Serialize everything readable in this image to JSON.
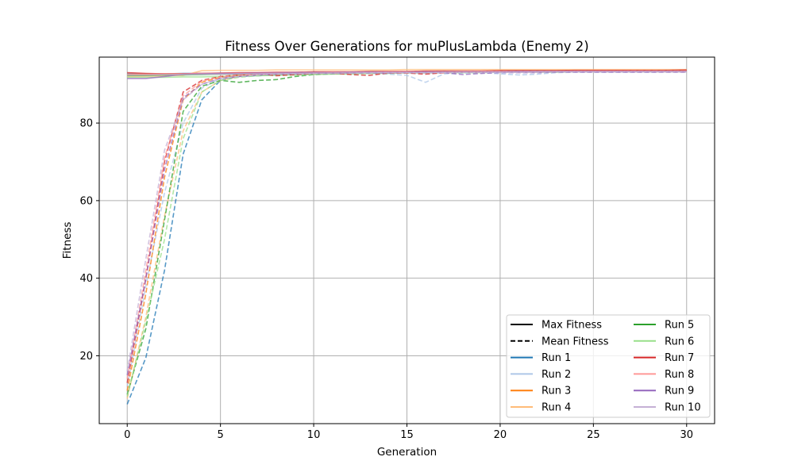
{
  "chart_data": {
    "type": "line",
    "title": "Fitness Over Generations for muPlusLambda (Enemy 2)",
    "xlabel": "Generation",
    "ylabel": "Fitness",
    "xlim": [
      -1.5,
      31.5
    ],
    "ylim": [
      2.5,
      97.0
    ],
    "xticks": [
      0,
      5,
      10,
      15,
      20,
      25,
      30
    ],
    "yticks": [
      20,
      40,
      60,
      80
    ],
    "grid": true,
    "legend_position": "lower-right",
    "legend_style_entries": [
      {
        "label": "Max Fitness",
        "style": "solid"
      },
      {
        "label": "Mean Fitness",
        "style": "dashed"
      }
    ],
    "x": [
      0,
      1,
      2,
      3,
      4,
      5,
      6,
      7,
      8,
      9,
      10,
      11,
      12,
      13,
      14,
      15,
      16,
      17,
      18,
      19,
      20,
      21,
      22,
      23,
      24,
      25,
      26,
      27,
      28,
      29,
      30
    ],
    "series": [
      {
        "name": "Run 1",
        "color": "#1f77b4",
        "max": [
          92.7,
          92.7,
          92.7,
          92.8,
          92.8,
          92.8,
          92.9,
          92.9,
          93.0,
          93.0,
          93.1,
          93.1,
          93.1,
          93.2,
          93.2,
          93.2,
          93.2,
          93.3,
          93.3,
          93.3,
          93.4,
          93.4,
          93.4,
          93.4,
          93.5,
          93.5,
          93.5,
          93.5,
          93.5,
          93.6,
          93.6
        ],
        "mean": [
          7.5,
          19.5,
          42.0,
          72.0,
          86.0,
          91.0,
          92.0,
          92.2,
          92.5,
          92.7,
          92.8,
          92.9,
          92.9,
          93.0,
          93.0,
          93.0,
          93.1,
          93.1,
          93.1,
          93.2,
          93.2,
          93.2,
          93.2,
          93.3,
          93.3,
          93.3,
          93.3,
          93.4,
          93.4,
          93.4,
          93.4
        ]
      },
      {
        "name": "Run 2",
        "color": "#aec7e8",
        "max": [
          92.2,
          92.3,
          92.4,
          92.5,
          92.5,
          92.6,
          92.6,
          92.7,
          92.7,
          92.8,
          92.8,
          92.8,
          92.9,
          92.9,
          92.9,
          93.0,
          93.0,
          93.0,
          93.0,
          93.1,
          93.1,
          93.1,
          93.1,
          93.1,
          93.2,
          93.2,
          93.2,
          93.2,
          93.2,
          93.2,
          93.2
        ],
        "mean": [
          12.0,
          38.0,
          62.0,
          80.0,
          89.0,
          91.5,
          92.0,
          92.3,
          92.5,
          92.6,
          92.7,
          92.8,
          92.8,
          92.9,
          92.6,
          92.3,
          90.5,
          92.7,
          92.9,
          93.0,
          92.7,
          92.4,
          92.6,
          93.0,
          93.1,
          93.1,
          93.1,
          93.1,
          93.1,
          93.2,
          93.2
        ]
      },
      {
        "name": "Run 3",
        "color": "#ff7f0e",
        "max": [
          92.5,
          92.6,
          92.7,
          92.7,
          92.8,
          92.8,
          92.9,
          92.9,
          93.0,
          93.0,
          93.0,
          93.1,
          93.1,
          93.1,
          93.2,
          93.2,
          93.2,
          93.3,
          93.3,
          93.3,
          93.3,
          93.4,
          93.4,
          93.4,
          93.4,
          93.4,
          93.5,
          93.5,
          93.5,
          93.5,
          93.5
        ],
        "mean": [
          11.0,
          36.0,
          66.0,
          86.0,
          90.5,
          91.8,
          92.3,
          92.5,
          92.7,
          92.8,
          92.9,
          93.0,
          93.0,
          93.1,
          93.1,
          93.1,
          93.2,
          93.2,
          93.2,
          93.2,
          93.3,
          93.3,
          93.3,
          93.3,
          93.3,
          93.4,
          93.4,
          93.4,
          93.4,
          93.4,
          93.4
        ]
      },
      {
        "name": "Run 4",
        "color": "#ffbb78",
        "max": [
          92.0,
          92.1,
          92.2,
          92.3,
          93.5,
          93.6,
          93.6,
          93.6,
          93.7,
          93.7,
          93.7,
          93.7,
          93.7,
          93.7,
          93.7,
          93.8,
          93.8,
          93.8,
          93.8,
          93.8,
          93.8,
          93.8,
          93.8,
          93.8,
          93.8,
          93.8,
          93.8,
          93.8,
          93.8,
          93.8,
          93.8
        ],
        "mean": [
          9.0,
          30.0,
          56.0,
          78.0,
          88.0,
          91.0,
          92.0,
          92.4,
          92.6,
          92.8,
          92.9,
          93.0,
          93.1,
          93.1,
          93.2,
          93.2,
          93.3,
          93.3,
          93.3,
          93.4,
          93.4,
          93.4,
          93.4,
          93.5,
          93.5,
          93.5,
          93.5,
          93.5,
          93.5,
          93.5,
          93.5
        ]
      },
      {
        "name": "Run 5",
        "color": "#2ca02c",
        "max": [
          92.3,
          92.3,
          92.4,
          92.4,
          92.5,
          92.6,
          92.6,
          92.7,
          92.8,
          92.8,
          92.9,
          92.9,
          93.0,
          93.0,
          93.0,
          93.1,
          93.1,
          93.1,
          93.2,
          93.2,
          93.2,
          93.2,
          93.3,
          93.3,
          93.3,
          93.3,
          93.3,
          93.3,
          93.4,
          93.4,
          93.4
        ],
        "mean": [
          10.0,
          27.0,
          55.0,
          83.0,
          89.5,
          91.0,
          90.5,
          91.0,
          91.2,
          92.0,
          92.5,
          92.7,
          92.8,
          92.9,
          93.0,
          93.0,
          93.1,
          93.1,
          93.1,
          93.2,
          93.2,
          93.2,
          93.2,
          93.3,
          93.3,
          93.3,
          93.3,
          93.3,
          93.3,
          93.3,
          93.3
        ]
      },
      {
        "name": "Run 6",
        "color": "#98df8a",
        "max": [
          91.8,
          91.8,
          91.8,
          91.9,
          91.9,
          92.0,
          92.1,
          92.2,
          92.3,
          92.4,
          92.5,
          92.6,
          92.7,
          92.8,
          92.8,
          92.9,
          92.9,
          93.0,
          93.0,
          93.0,
          93.1,
          93.1,
          93.1,
          93.1,
          93.2,
          93.2,
          93.2,
          93.2,
          93.2,
          93.2,
          93.2
        ],
        "mean": [
          9.5,
          29.0,
          50.0,
          76.0,
          88.0,
          91.0,
          91.8,
          92.2,
          92.4,
          92.6,
          92.7,
          92.8,
          92.9,
          92.9,
          93.0,
          93.0,
          93.0,
          93.1,
          93.1,
          93.1,
          93.1,
          93.2,
          93.2,
          93.2,
          93.2,
          93.2,
          93.2,
          93.2,
          93.2,
          93.2,
          93.2
        ]
      },
      {
        "name": "Run 7",
        "color": "#d62728",
        "max": [
          93.0,
          92.8,
          92.7,
          92.7,
          92.8,
          92.9,
          93.0,
          93.0,
          93.1,
          93.1,
          93.2,
          93.2,
          93.2,
          93.3,
          93.3,
          93.3,
          93.4,
          93.4,
          93.4,
          93.4,
          93.5,
          93.5,
          93.5,
          93.5,
          93.6,
          93.6,
          93.6,
          93.6,
          93.6,
          93.6,
          93.7
        ],
        "mean": [
          13.0,
          40.0,
          70.0,
          88.0,
          91.0,
          92.0,
          92.4,
          92.8,
          92.2,
          92.5,
          92.8,
          92.9,
          92.5,
          92.3,
          92.9,
          92.9,
          92.6,
          93.0,
          93.1,
          93.1,
          93.2,
          93.2,
          93.2,
          93.3,
          93.3,
          93.3,
          93.3,
          93.3,
          93.3,
          93.4,
          93.4
        ]
      },
      {
        "name": "Run 8",
        "color": "#ff9896",
        "max": [
          92.6,
          92.6,
          92.7,
          92.7,
          92.8,
          92.8,
          92.9,
          92.9,
          93.0,
          93.0,
          93.0,
          93.1,
          93.1,
          93.1,
          93.2,
          93.2,
          93.2,
          93.2,
          93.3,
          93.3,
          93.3,
          93.3,
          93.3,
          93.3,
          93.4,
          93.4,
          93.4,
          93.4,
          93.4,
          93.4,
          93.4
        ],
        "mean": [
          14.0,
          42.0,
          71.0,
          87.0,
          90.8,
          91.9,
          92.3,
          92.6,
          92.8,
          92.9,
          93.0,
          93.0,
          93.1,
          93.1,
          93.1,
          93.2,
          93.2,
          93.2,
          93.2,
          93.3,
          93.3,
          93.3,
          93.3,
          93.3,
          93.3,
          93.3,
          93.3,
          93.4,
          93.4,
          93.4,
          93.4
        ]
      },
      {
        "name": "Run 9",
        "color": "#9467bd",
        "max": [
          91.5,
          91.5,
          92.0,
          92.6,
          92.7,
          92.8,
          92.8,
          92.9,
          92.9,
          93.0,
          93.0,
          93.0,
          93.1,
          93.1,
          93.1,
          93.1,
          93.2,
          93.2,
          93.2,
          93.2,
          93.2,
          93.3,
          93.3,
          93.3,
          93.3,
          93.3,
          93.3,
          93.3,
          93.3,
          93.3,
          93.3
        ],
        "mean": [
          15.0,
          40.0,
          68.0,
          86.5,
          90.0,
          91.5,
          92.0,
          92.4,
          92.6,
          92.7,
          92.8,
          92.8,
          92.9,
          92.9,
          92.9,
          93.0,
          93.0,
          93.0,
          92.5,
          92.8,
          93.0,
          93.0,
          93.0,
          93.1,
          93.1,
          93.1,
          93.1,
          93.1,
          93.1,
          93.1,
          93.1
        ]
      },
      {
        "name": "Run 10",
        "color": "#c5b0d5",
        "max": [
          92.4,
          92.4,
          92.5,
          92.5,
          92.6,
          92.6,
          92.7,
          92.7,
          92.8,
          92.8,
          92.9,
          92.9,
          92.9,
          93.0,
          93.0,
          93.0,
          93.0,
          93.1,
          93.1,
          93.1,
          93.1,
          93.1,
          93.2,
          93.2,
          93.2,
          93.2,
          93.2,
          93.2,
          93.2,
          93.2,
          93.2
        ],
        "mean": [
          16.0,
          45.0,
          73.0,
          86.0,
          90.0,
          91.5,
          92.0,
          92.4,
          92.6,
          92.7,
          92.8,
          92.9,
          92.9,
          93.0,
          93.0,
          93.0,
          93.0,
          93.1,
          93.1,
          93.1,
          93.1,
          93.1,
          93.1,
          93.2,
          93.2,
          93.2,
          93.2,
          93.2,
          93.2,
          93.2,
          93.2
        ]
      }
    ]
  }
}
